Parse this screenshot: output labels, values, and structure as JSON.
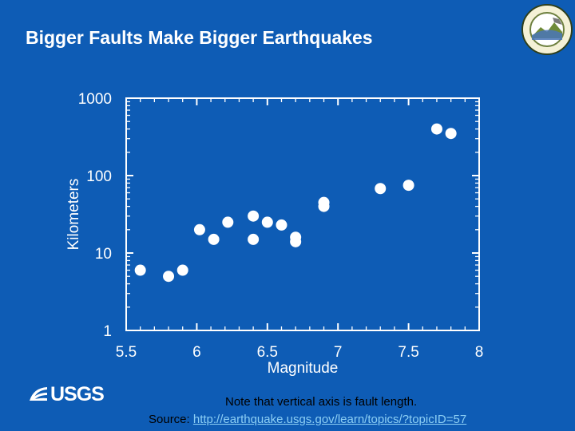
{
  "slide": {
    "title": "Bigger Faults Make Bigger Earthquakes",
    "note": "Note that vertical axis is fault length.",
    "source_label": "Source:",
    "source_link": "http://earthquake.usgs.gov/learn/topics/?topicID=57",
    "logo_text": "USGS"
  },
  "colors": {
    "background": "#0e5cb5",
    "foreground": "#ffffff",
    "link": "#8ccff5",
    "body_text": "#000000"
  },
  "icons": {
    "seal": "agency-seal-icon",
    "logo": "usgs-logo-icon"
  },
  "chart_data": {
    "type": "scatter",
    "title": "",
    "xlabel": "Magnitude",
    "ylabel": "Kilometers",
    "xlim": [
      5.5,
      8
    ],
    "ylim": [
      1,
      1000
    ],
    "y_scale": "log",
    "x_ticks": [
      5.5,
      6,
      6.5,
      7,
      7.5,
      8
    ],
    "x_tick_labels": [
      "5.5",
      "6",
      "6.5",
      "7",
      "7.5",
      "8"
    ],
    "y_ticks": [
      1,
      10,
      100,
      1000
    ],
    "y_tick_labels": [
      "1",
      "10",
      "100",
      "1000"
    ],
    "grid": false,
    "legend": "none",
    "points": [
      {
        "x": 5.6,
        "y": 6
      },
      {
        "x": 5.8,
        "y": 5
      },
      {
        "x": 5.9,
        "y": 6
      },
      {
        "x": 6.02,
        "y": 20
      },
      {
        "x": 6.12,
        "y": 15
      },
      {
        "x": 6.22,
        "y": 25
      },
      {
        "x": 6.4,
        "y": 30
      },
      {
        "x": 6.4,
        "y": 15
      },
      {
        "x": 6.5,
        "y": 25
      },
      {
        "x": 6.6,
        "y": 23
      },
      {
        "x": 6.7,
        "y": 16
      },
      {
        "x": 6.7,
        "y": 14
      },
      {
        "x": 6.9,
        "y": 45
      },
      {
        "x": 6.9,
        "y": 40
      },
      {
        "x": 7.3,
        "y": 68
      },
      {
        "x": 7.5,
        "y": 75
      },
      {
        "x": 7.7,
        "y": 400
      },
      {
        "x": 7.8,
        "y": 350
      }
    ]
  }
}
